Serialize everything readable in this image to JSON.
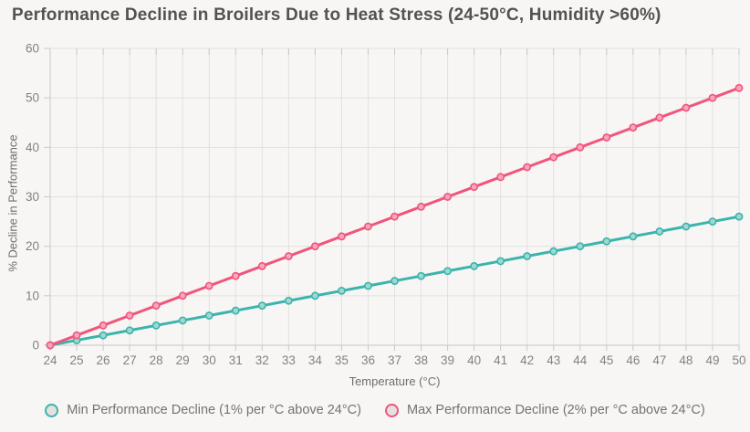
{
  "chart_data": {
    "type": "line",
    "title": "Performance Decline in Broilers Due to Heat Stress (24-50°C, Humidity >60%)",
    "xlabel": "Temperature (°C)",
    "ylabel": "% Decline in Performance",
    "x": [
      24,
      25,
      26,
      27,
      28,
      29,
      30,
      31,
      32,
      33,
      34,
      35,
      36,
      37,
      38,
      39,
      40,
      41,
      42,
      43,
      44,
      45,
      46,
      47,
      48,
      49,
      50
    ],
    "xlim": [
      24,
      50
    ],
    "ylim": [
      0,
      60
    ],
    "yticks": [
      0,
      10,
      20,
      30,
      40,
      50,
      60
    ],
    "grid": true,
    "legend_position": "bottom",
    "series": [
      {
        "name": "Min Performance Decline (1% per °C above 24°C)",
        "color": "#3bb4ab",
        "marker_fill": "#9ed8d3",
        "values": [
          0,
          1,
          2,
          3,
          4,
          5,
          6,
          7,
          8,
          9,
          10,
          11,
          12,
          13,
          14,
          15,
          16,
          17,
          18,
          19,
          20,
          21,
          22,
          23,
          24,
          25,
          26
        ]
      },
      {
        "name": "Max Performance Decline (2% per °C above 24°C)",
        "color": "#f0557c",
        "marker_fill": "#f7a6bb",
        "values": [
          0,
          2,
          4,
          6,
          8,
          10,
          12,
          14,
          16,
          18,
          20,
          22,
          24,
          26,
          28,
          30,
          32,
          34,
          36,
          38,
          40,
          42,
          44,
          46,
          48,
          50,
          52
        ]
      }
    ],
    "colors": {
      "background": "#f7f6f4",
      "grid": "#e2e1df",
      "axis": "#c9c8c6",
      "tick_label": "#828282"
    }
  }
}
